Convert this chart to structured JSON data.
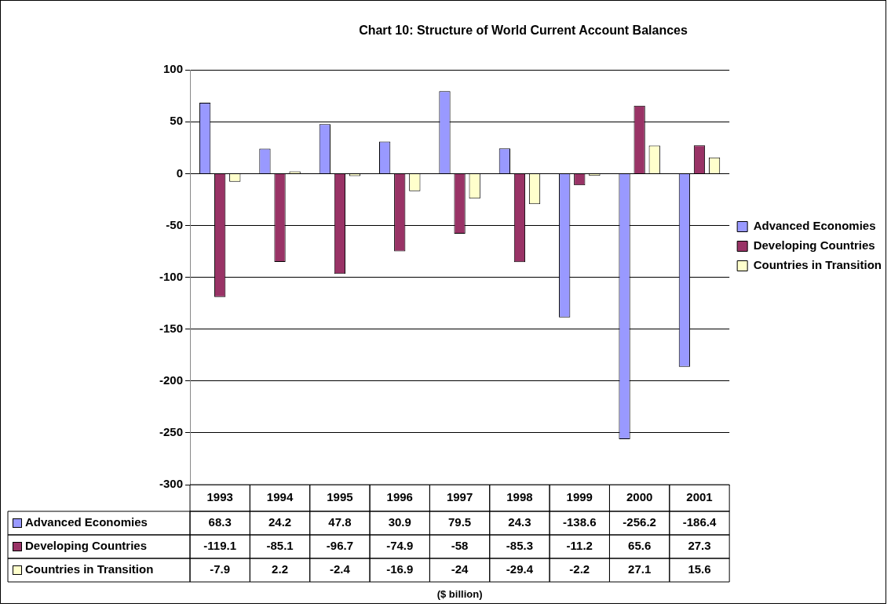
{
  "chart_data": {
    "type": "bar",
    "title": "Chart 10: Structure of World Current Account Balances",
    "annotations": [
      "($ billion)"
    ],
    "categories": [
      "1993",
      "1994",
      "1995",
      "1996",
      "1997",
      "1998",
      "1999",
      "2000",
      "2001"
    ],
    "series": [
      {
        "name": "Advanced Economies",
        "color": "#9999ff",
        "values": [
          68.3,
          24.2,
          47.8,
          30.9,
          79.5,
          24.3,
          -138.6,
          -256.2,
          -186.4
        ]
      },
      {
        "name": "Developing Countries",
        "color": "#993366",
        "values": [
          -119.1,
          -85.1,
          -96.7,
          -74.9,
          -58,
          -85.3,
          -11.2,
          65.6,
          27.3
        ]
      },
      {
        "name": "Countries in Transition",
        "color": "#ffffcc",
        "values": [
          -7.9,
          2.2,
          -2.4,
          -16.9,
          -24,
          -29.4,
          -2.2,
          27.1,
          15.6
        ]
      }
    ],
    "ylim": [
      -300,
      100
    ],
    "yticks": [
      100,
      50,
      0,
      -50,
      -100,
      -150,
      -200,
      -250,
      -300
    ],
    "grid": "y",
    "legend": "right",
    "data_labels": true
  }
}
